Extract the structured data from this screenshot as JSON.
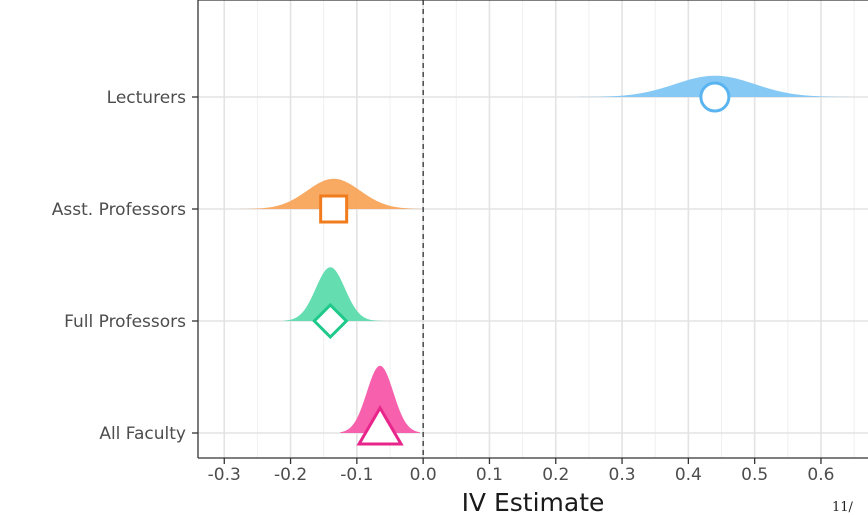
{
  "chart_data": {
    "type": "density",
    "xlabel": "IV Estimate",
    "ylabel": "",
    "xlim": [
      -0.32,
      0.69
    ],
    "x_ticks": [
      -0.3,
      -0.2,
      -0.1,
      0.0,
      0.1,
      0.2,
      0.3,
      0.4,
      0.5,
      0.6
    ],
    "x_tick_labels": [
      "-0.3",
      "-0.2",
      "-0.1",
      "0.0",
      "0.1",
      "0.2",
      "0.3",
      "0.4",
      "0.5",
      "0.6"
    ],
    "reference_line": 0.0,
    "grid": true,
    "categories": [
      "Lecturers",
      "Asst. Professors",
      "Full Professors",
      "All Faculty"
    ],
    "series": [
      {
        "name": "Lecturers",
        "estimate": 0.44,
        "range": [
          0.23,
          0.645
        ],
        "sd": 0.06,
        "peak": 0.19,
        "marker": "circle",
        "color": "#5ab4f0",
        "fill": "#7fc6f4"
      },
      {
        "name": "Asst. Professors",
        "estimate": -0.135,
        "range": [
          -0.275,
          0.0
        ],
        "sd": 0.04,
        "peak": 0.27,
        "marker": "square",
        "color": "#f07c1e",
        "fill": "#f8a45a"
      },
      {
        "name": "Full Professors",
        "estimate": -0.14,
        "range": [
          -0.21,
          -0.06
        ],
        "sd": 0.022,
        "peak": 0.48,
        "marker": "diamond",
        "color": "#1ec98a",
        "fill": "#5cdbad"
      },
      {
        "name": "All Faculty",
        "estimate": -0.065,
        "range": [
          -0.125,
          -0.005
        ],
        "sd": 0.02,
        "peak": 0.6,
        "marker": "triangle",
        "color": "#e8258a",
        "fill": "#f557a8"
      }
    ]
  },
  "page_number": "11/"
}
